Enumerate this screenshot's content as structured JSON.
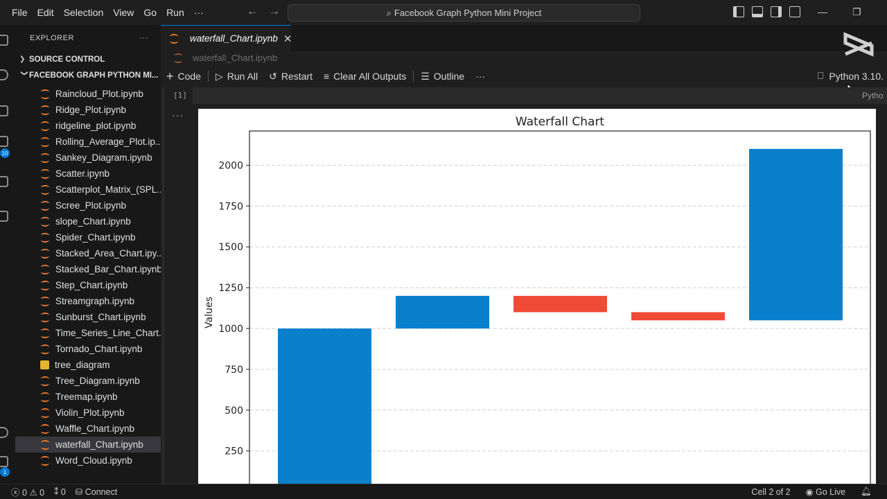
{
  "titlebar": {
    "menu": [
      "File",
      "Edit",
      "Selection",
      "View",
      "Go",
      "Run",
      "···"
    ],
    "search_text": "Facebook Graph Python Mini Project"
  },
  "sidebar": {
    "header": "EXPLORER",
    "header_more": "···",
    "sections": {
      "source_control": "SOURCE CONTROL",
      "project": "FACEBOOK GRAPH PYTHON MI..."
    },
    "files": [
      {
        "name": "Raincloud_Plot.ipynb",
        "type": "notebook"
      },
      {
        "name": "Ridge_Plot.ipynb",
        "type": "notebook"
      },
      {
        "name": "ridgeline_plot.ipynb",
        "type": "notebook"
      },
      {
        "name": "Rolling_Average_Plot.ip...",
        "type": "notebook"
      },
      {
        "name": "Sankey_Diagram.ipynb",
        "type": "notebook"
      },
      {
        "name": "Scatter.ipynb",
        "type": "notebook"
      },
      {
        "name": "Scatterplot_Matrix_(SPL...",
        "type": "notebook"
      },
      {
        "name": "Scree_Plot.ipynb",
        "type": "notebook"
      },
      {
        "name": "slope_Chart.ipynb",
        "type": "notebook"
      },
      {
        "name": "Spider_Chart.ipynb",
        "type": "notebook"
      },
      {
        "name": "Stacked_Area_Chart.ipy...",
        "type": "notebook"
      },
      {
        "name": "Stacked_Bar_Chart.ipynb",
        "type": "notebook"
      },
      {
        "name": "Step_Chart.ipynb",
        "type": "notebook"
      },
      {
        "name": "Streamgraph.ipynb",
        "type": "notebook"
      },
      {
        "name": "Sunburst_Chart.ipynb",
        "type": "notebook"
      },
      {
        "name": "Time_Series_Line_Chart...",
        "type": "notebook"
      },
      {
        "name": "Tornado_Chart.ipynb",
        "type": "notebook"
      },
      {
        "name": "tree_diagram",
        "type": "image"
      },
      {
        "name": "Tree_Diagram.ipynb",
        "type": "notebook"
      },
      {
        "name": "Treemap.ipynb",
        "type": "notebook"
      },
      {
        "name": "Violin_Plot.ipynb",
        "type": "notebook"
      },
      {
        "name": "Waffle_Chart.ipynb",
        "type": "notebook"
      },
      {
        "name": "waterfall_Chart.ipynb",
        "type": "notebook",
        "active": true
      },
      {
        "name": "Word_Cloud.ipynb",
        "type": "notebook"
      }
    ]
  },
  "activity": {
    "badge_source_control": "10",
    "badge_accounts": "1"
  },
  "editor": {
    "tab_label": "waterfall_Chart.ipynb",
    "tab_close": "✕",
    "breadcrumb": "waterfall_Chart.ipynb",
    "toolbar": {
      "code": "Code",
      "run_all": "Run All",
      "restart": "Restart",
      "clear_outputs": "Clear All Outputs",
      "outline": "Outline",
      "more": "···"
    },
    "kernel": "Python 3.10.",
    "cell_exec_count": "[1]",
    "cell_language": "Pytho",
    "output_more": "···"
  },
  "chart_data": {
    "type": "bar",
    "title": "Waterfall Chart",
    "xlabel": "",
    "ylabel": "Values",
    "yticks": [
      250,
      500,
      750,
      1000,
      1250,
      1500,
      1750,
      2000
    ],
    "grid": "y-dashed",
    "bars": [
      {
        "bottom": 0,
        "top": 1000,
        "color": "#0a7fcc"
      },
      {
        "bottom": 1000,
        "top": 1200,
        "color": "#0a7fcc"
      },
      {
        "bottom": 1100,
        "top": 1200,
        "color": "#ef4a35"
      },
      {
        "bottom": 1050,
        "top": 1100,
        "color": "#ef4a35"
      },
      {
        "bottom": 1050,
        "top": 2100,
        "color": "#0a7fcc"
      }
    ]
  },
  "statusbar": {
    "errors": "0",
    "warnings": "0",
    "ports": "0",
    "connect": "Connect",
    "cell": "Cell 2 of 2",
    "go_live": "Go Live"
  },
  "colors": {
    "accent": "#0078d4",
    "increase": "#0a7fcc",
    "decrease": "#ef4a35"
  }
}
